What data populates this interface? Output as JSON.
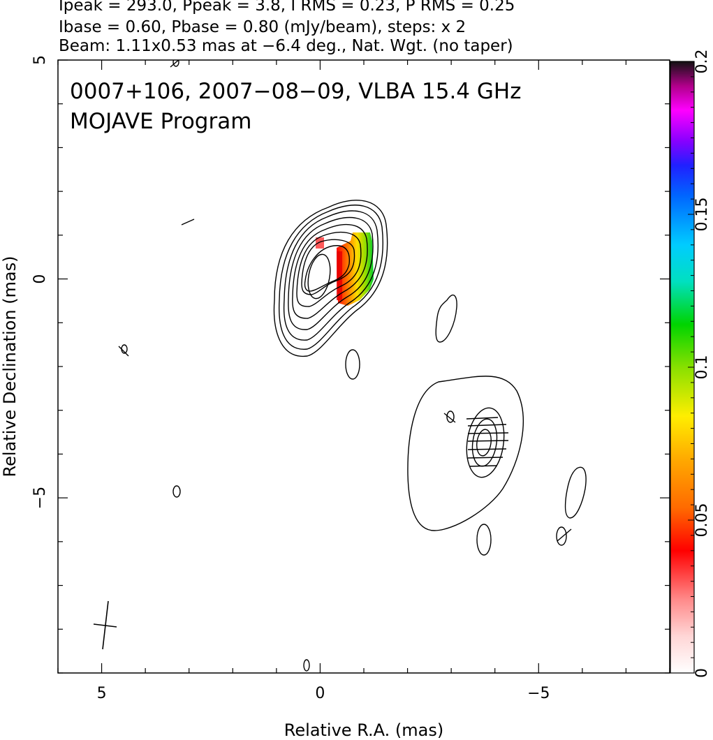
{
  "header": {
    "line1": "Ipeak = 293.0, Ppeak = 3.8, I RMS = 0.23, P RMS = 0.25",
    "line2": "Ibase = 0.60, Pbase = 0.80 (mJy/beam), steps: x 2",
    "line3": "Beam: 1.11x0.53 mas at −6.4 deg., Nat. Wgt. (no taper)"
  },
  "annotation": {
    "line1": "0007+106, 2007−08−09, VLBA 15.4 GHz",
    "line2": "MOJAVE Program"
  },
  "chart_data": {
    "type": "contour",
    "xlabel": "Relative R.A. (mas)",
    "ylabel": "Relative Declination (mas)",
    "xlim": [
      6,
      -8
    ],
    "ylim": [
      -9,
      5
    ],
    "x_ticks": [
      {
        "v": 5,
        "label": "5"
      },
      {
        "v": 0,
        "label": "0"
      },
      {
        "v": -5,
        "label": "−5"
      }
    ],
    "y_ticks": [
      {
        "v": 5,
        "label": "5"
      },
      {
        "v": 0,
        "label": "0"
      },
      {
        "v": -5,
        "label": "−5"
      }
    ],
    "colorbar": {
      "range": [
        0,
        0.2
      ],
      "ticks": [
        {
          "v": 0,
          "label": "0"
        },
        {
          "v": 0.05,
          "label": "0.05"
        },
        {
          "v": 0.1,
          "label": "0.1"
        },
        {
          "v": 0.15,
          "label": "0.15"
        },
        {
          "v": 0.2,
          "label": "0.2"
        }
      ]
    },
    "core": {
      "x": 0.0,
      "y": 0.0,
      "levels": 9,
      "peak_mJy": 293.0
    },
    "secondary_component": {
      "x": -3.8,
      "y": -3.7,
      "levels": 4
    },
    "polarization_region": {
      "x_range": [
        -0.4,
        -1.1
      ],
      "y_range": [
        -0.6,
        0.9
      ],
      "frac_pol_range": [
        0.03,
        0.1
      ]
    },
    "beam": {
      "major_mas": 1.11,
      "minor_mas": 0.53,
      "pa_deg": -6.4
    }
  }
}
